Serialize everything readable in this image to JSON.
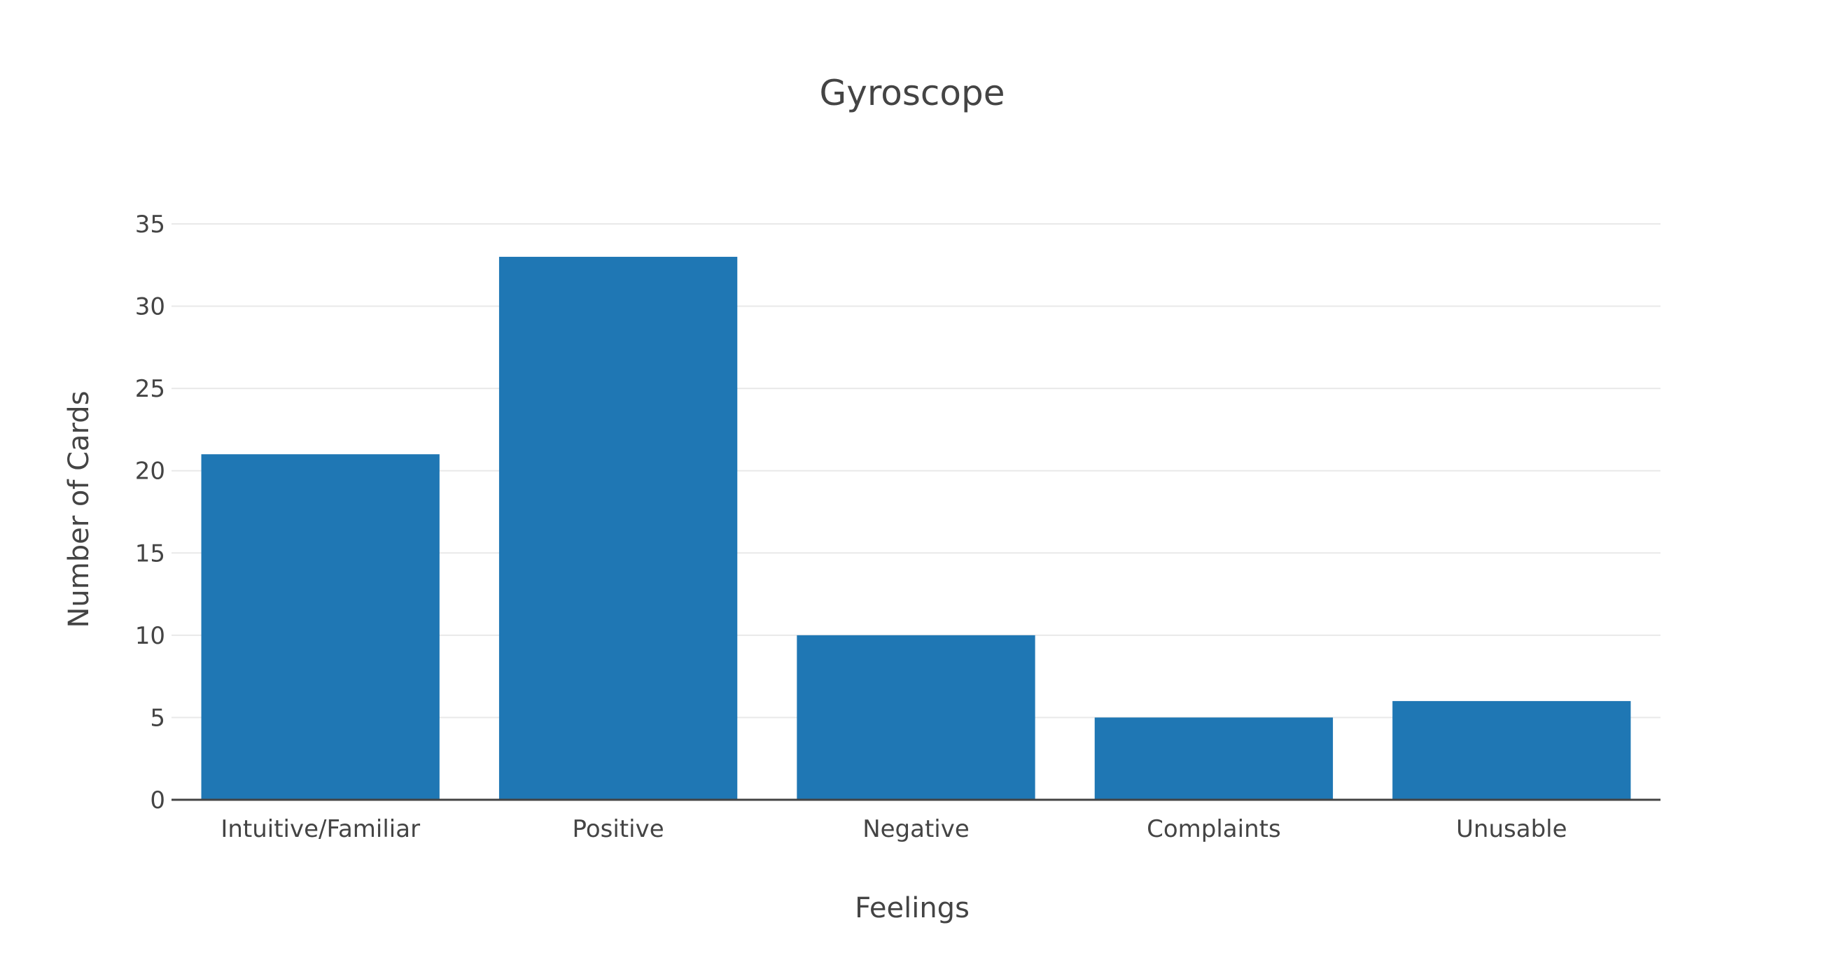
{
  "chart_data": {
    "type": "bar",
    "title": "Gyroscope",
    "xlabel": "Feelings",
    "ylabel": "Number of Cards",
    "categories": [
      "Intuitive/Familiar",
      "Positive",
      "Negative",
      "Complaints",
      "Unusable"
    ],
    "values": [
      21,
      33,
      10,
      5,
      6
    ],
    "ylim": [
      0,
      35
    ],
    "yticks": [
      "0",
      "5",
      "10",
      "15",
      "20",
      "25",
      "30",
      "35"
    ],
    "grid": true,
    "bar_color": "#1f77b4"
  }
}
